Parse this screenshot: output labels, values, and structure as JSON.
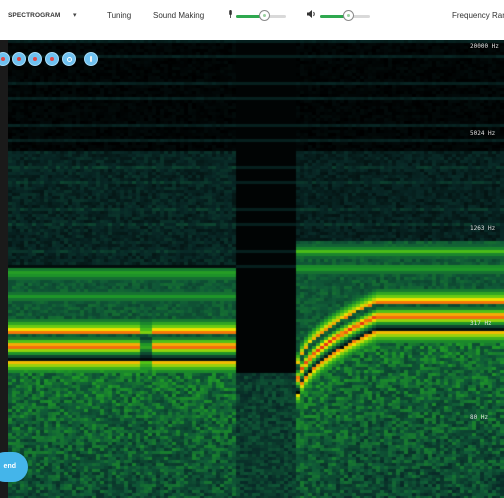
{
  "toolbar": {
    "mode_label": "SPECTROGRAM",
    "mode_arrow": "▾",
    "tuning_label": "Tuning",
    "sound_making_label": "Sound Making",
    "frequency_range_label": "Frequency Rang"
  },
  "mic_volume": {
    "icon": "microphone-icon",
    "level": 0.55
  },
  "speaker_volume": {
    "icon": "speaker-icon",
    "level": 0.55
  },
  "spectrogram": {
    "frequency_labels": [
      "20000 Hz",
      "5024 Hz",
      "1263 Hz",
      "317 Hz",
      "80 Hz"
    ],
    "colors": {
      "background": "#000000",
      "low": "#0b3d2e",
      "mid": "#1fae2c",
      "high": "#f0e000",
      "peak": "#e31a1a"
    }
  },
  "controls": {
    "circle_buttons": [
      "record-icon",
      "record-icon",
      "record-icon",
      "record-icon",
      "settings-icon",
      "info-icon"
    ],
    "send_label": "end"
  }
}
